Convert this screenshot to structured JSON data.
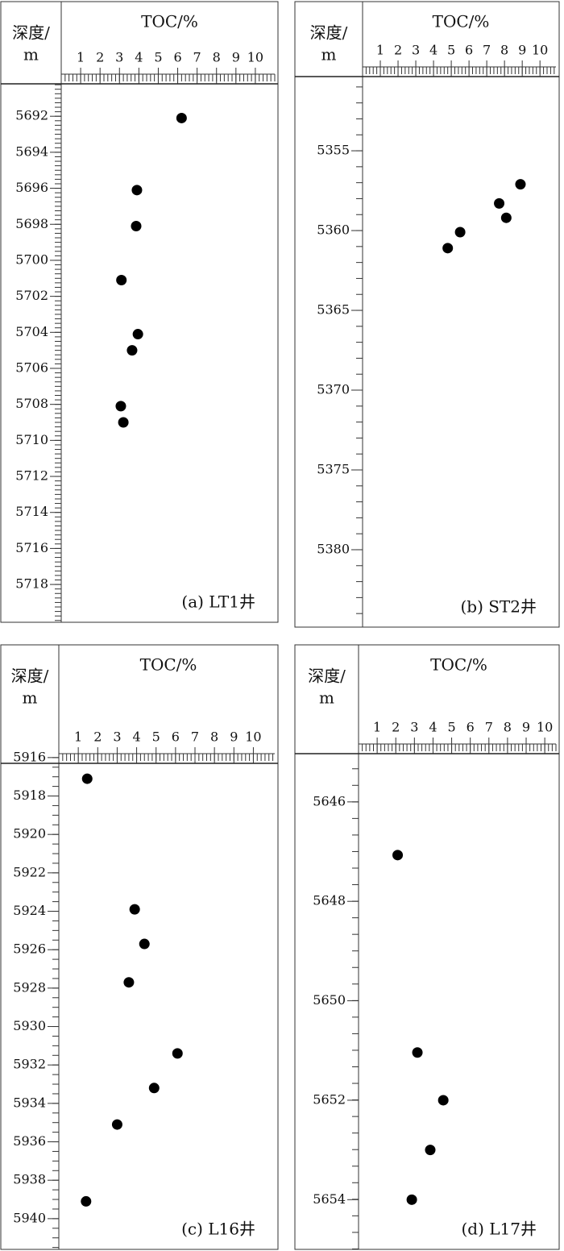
{
  "chart_data": [
    {
      "type": "scatter",
      "ylabel": [
        "深度/",
        "m"
      ],
      "xlabel": "TOC/%",
      "annotation": "(a) LT1井",
      "x": [
        6.2,
        3.9,
        3.86,
        3.1,
        3.95,
        3.65,
        3.07,
        3.2
      ],
      "values": [
        5692.1,
        5696.1,
        5698.1,
        5701.1,
        5704.1,
        5705.0,
        5708.1,
        5709.0
      ],
      "color": "#000000",
      "xlim": [
        0,
        11
      ],
      "xticks": [
        1,
        2,
        3,
        4,
        5,
        6,
        7,
        8,
        9,
        10
      ],
      "xminor_step": 0.2,
      "ylim": [
        5690.2,
        5720.1
      ],
      "y_inverted": true,
      "yticks": [
        5692,
        5694,
        5696,
        5698,
        5700,
        5702,
        5704,
        5706,
        5708,
        5710,
        5712,
        5714,
        5716,
        5718
      ],
      "yminor_step": 0.25
    },
    {
      "type": "scatter",
      "ylabel": [
        "深度/",
        "m"
      ],
      "xlabel": "TOC/%",
      "annotation": "(b) ST2井",
      "x": [
        8.9,
        7.7,
        8.1,
        5.5,
        4.8
      ],
      "values": [
        5357.1,
        5358.3,
        5359.2,
        5360.1,
        5361.1
      ],
      "color": "#000000",
      "xlim": [
        0,
        10.9
      ],
      "xticks": [
        1,
        2,
        3,
        4,
        5,
        6,
        7,
        8,
        9,
        10
      ],
      "xminor_step": 0.2,
      "ylim": [
        5350.35,
        5384.85
      ],
      "y_inverted": true,
      "yticks": [
        5355,
        5360,
        5365,
        5370,
        5375,
        5380
      ],
      "yminor_step": 1
    },
    {
      "type": "scatter",
      "ylabel": [
        "深度/",
        "m"
      ],
      "xlabel": "TOC/%",
      "annotation": "(c) L16井",
      "x": [
        1.46,
        3.9,
        4.4,
        3.6,
        6.1,
        4.9,
        3.0,
        1.4
      ],
      "values": [
        5917.1,
        5923.9,
        5925.7,
        5927.7,
        5931.4,
        5933.2,
        5935.1,
        5939.1
      ],
      "color": "#000000",
      "xlim": [
        0,
        11.1
      ],
      "xticks": [
        1,
        2,
        3,
        4,
        5,
        6,
        7,
        8,
        9,
        10
      ],
      "xminor_step": 0.2,
      "ylim": [
        5916.3,
        5941.6
      ],
      "y_inverted": true,
      "yticks": [
        5916,
        5918,
        5920,
        5922,
        5924,
        5926,
        5928,
        5930,
        5932,
        5934,
        5936,
        5938,
        5940
      ],
      "yminor_step": 0.5
    },
    {
      "type": "scatter",
      "ylabel": [
        "深度/",
        "m"
      ],
      "xlabel": "TOC/%",
      "annotation": "(d) L17井",
      "x": [
        2.1,
        3.16,
        4.55,
        3.85,
        2.86
      ],
      "values": [
        5647.07,
        5651.04,
        5652.0,
        5653.0,
        5654.0
      ],
      "color": "#000000",
      "xlim": [
        0,
        10.6
      ],
      "xticks": [
        1,
        2,
        3,
        4,
        5,
        6,
        7,
        8,
        9,
        10
      ],
      "xminor_step": 0.2,
      "ylim": [
        5645.03,
        5655
      ],
      "y_inverted": true,
      "yticks": [
        5646,
        5648,
        5650,
        5652,
        5654
      ],
      "yminor_step": 0.333
    }
  ]
}
